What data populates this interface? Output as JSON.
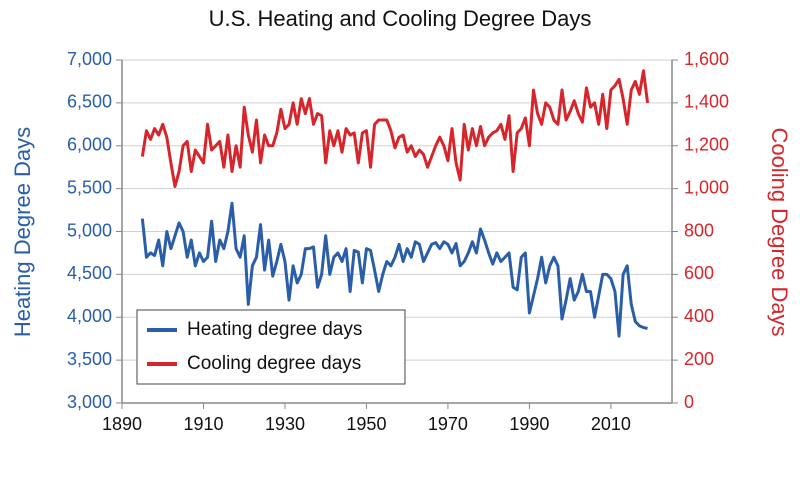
{
  "chart_data": {
    "type": "line",
    "title": "U.S. Heating and Cooling Degree Days",
    "y_label": "Heating Degree Days",
    "y2_label": "Cooling Degree Days",
    "x": [
      1895,
      1896,
      1897,
      1898,
      1899,
      1900,
      1901,
      1902,
      1903,
      1904,
      1905,
      1906,
      1907,
      1908,
      1909,
      1910,
      1911,
      1912,
      1913,
      1914,
      1915,
      1916,
      1917,
      1918,
      1919,
      1920,
      1921,
      1922,
      1923,
      1924,
      1925,
      1926,
      1927,
      1928,
      1929,
      1930,
      1931,
      1932,
      1933,
      1934,
      1935,
      1936,
      1937,
      1938,
      1939,
      1940,
      1941,
      1942,
      1943,
      1944,
      1945,
      1946,
      1947,
      1948,
      1949,
      1950,
      1951,
      1952,
      1953,
      1954,
      1955,
      1956,
      1957,
      1958,
      1959,
      1960,
      1961,
      1962,
      1963,
      1964,
      1965,
      1966,
      1967,
      1968,
      1969,
      1970,
      1971,
      1972,
      1973,
      1974,
      1975,
      1976,
      1977,
      1978,
      1979,
      1980,
      1981,
      1982,
      1983,
      1984,
      1985,
      1986,
      1987,
      1988,
      1989,
      1990,
      1991,
      1992,
      1993,
      1994,
      1995,
      1996,
      1997,
      1998,
      1999,
      2000,
      2001,
      2002,
      2003,
      2004,
      2005,
      2006,
      2007,
      2008,
      2009,
      2010,
      2011,
      2012,
      2013,
      2014,
      2015,
      2016,
      2017,
      2018,
      2019
    ],
    "series": [
      {
        "name": "Heating degree days",
        "color": "#2a5ea8",
        "axis": "y",
        "values": [
          5150,
          4700,
          4750,
          4720,
          4900,
          4600,
          5000,
          4800,
          4950,
          5100,
          5000,
          4700,
          4900,
          4600,
          4750,
          4650,
          4700,
          5120,
          4650,
          4900,
          4800,
          5000,
          5330,
          4800,
          4700,
          4950,
          4150,
          4600,
          4700,
          5080,
          4550,
          4900,
          4480,
          4650,
          4850,
          4650,
          4200,
          4600,
          4400,
          4500,
          4800,
          4800,
          4820,
          4350,
          4500,
          4950,
          4500,
          4700,
          4750,
          4650,
          4800,
          4300,
          4780,
          4760,
          4400,
          4800,
          4780,
          4550,
          4300,
          4500,
          4650,
          4600,
          4700,
          4850,
          4650,
          4800,
          4700,
          4880,
          4850,
          4650,
          4750,
          4850,
          4870,
          4800,
          4880,
          4850,
          4750,
          4860,
          4600,
          4650,
          4750,
          4880,
          4750,
          5030,
          4900,
          4750,
          4620,
          4750,
          4650,
          4700,
          4750,
          4350,
          4320,
          4700,
          4750,
          4050,
          4250,
          4450,
          4700,
          4400,
          4600,
          4700,
          4600,
          3980,
          4200,
          4450,
          4200,
          4300,
          4500,
          4300,
          4300,
          4000,
          4250,
          4500,
          4500,
          4450,
          4300,
          3780,
          4500,
          4600,
          4150,
          3950,
          3900,
          3880,
          3870
        ]
      },
      {
        "name": "Cooling degree days",
        "color": "#d7262b",
        "axis": "y2",
        "values": [
          1150,
          1270,
          1230,
          1280,
          1250,
          1300,
          1240,
          1120,
          1010,
          1080,
          1200,
          1220,
          1080,
          1180,
          1150,
          1120,
          1300,
          1180,
          1200,
          1220,
          1100,
          1250,
          1080,
          1200,
          1100,
          1380,
          1250,
          1170,
          1320,
          1120,
          1250,
          1200,
          1200,
          1260,
          1370,
          1280,
          1300,
          1400,
          1300,
          1420,
          1350,
          1420,
          1300,
          1350,
          1340,
          1120,
          1270,
          1200,
          1270,
          1170,
          1280,
          1250,
          1260,
          1120,
          1260,
          1270,
          1100,
          1300,
          1320,
          1320,
          1320,
          1270,
          1190,
          1240,
          1250,
          1170,
          1200,
          1150,
          1180,
          1160,
          1100,
          1150,
          1200,
          1240,
          1200,
          1130,
          1280,
          1120,
          1040,
          1300,
          1180,
          1280,
          1200,
          1290,
          1200,
          1240,
          1260,
          1270,
          1300,
          1230,
          1340,
          1080,
          1260,
          1280,
          1330,
          1200,
          1460,
          1350,
          1300,
          1400,
          1380,
          1320,
          1300,
          1460,
          1320,
          1360,
          1410,
          1350,
          1310,
          1470,
          1380,
          1400,
          1300,
          1440,
          1280,
          1460,
          1480,
          1510,
          1420,
          1300,
          1460,
          1500,
          1440,
          1550,
          1400
        ]
      }
    ],
    "xlim": [
      1890,
      2025
    ],
    "xticks": [
      1890,
      1910,
      1930,
      1950,
      1970,
      1990,
      2010
    ],
    "ylim": [
      3000,
      7000
    ],
    "yticks": [
      {
        "value": 3000,
        "label": "3,000"
      },
      {
        "value": 3500,
        "label": "3,500"
      },
      {
        "value": 4000,
        "label": "4,000"
      },
      {
        "value": 4500,
        "label": "4,500"
      },
      {
        "value": 5000,
        "label": "5,000"
      },
      {
        "value": 5500,
        "label": "5,500"
      },
      {
        "value": 6000,
        "label": "6,000"
      },
      {
        "value": 6500,
        "label": "6,500"
      },
      {
        "value": 7000,
        "label": "7,000"
      }
    ],
    "y2lim": [
      0,
      1600
    ],
    "y2ticks": [
      0,
      200,
      400,
      600,
      800,
      {
        "value": 1000,
        "label": "1,000"
      },
      {
        "value": 1200,
        "label": "1,200"
      },
      {
        "value": 1400,
        "label": "1,400"
      },
      {
        "value": 1600,
        "label": "1,600"
      }
    ],
    "grid": true,
    "legend": "lower-left"
  }
}
